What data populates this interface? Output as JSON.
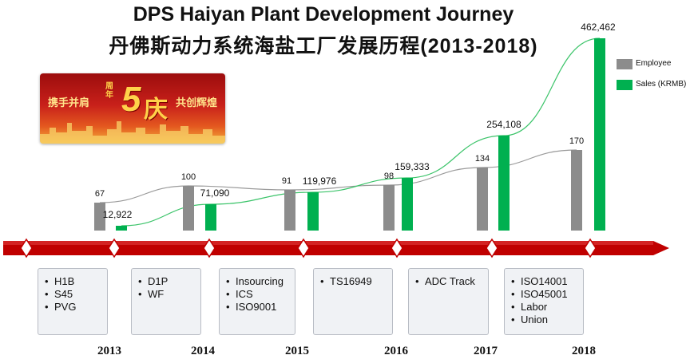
{
  "title_en": "DPS Haiyan Plant Development Journey",
  "title_cn": "丹佛斯动力系统海盐工厂发展历程(2013-2018)",
  "banner": {
    "left_text": "携手并肩",
    "number": "5",
    "small": "周年",
    "char": "庆",
    "right_text": "共创辉煌"
  },
  "colors": {
    "employee": "#8c8c8c",
    "sales": "#00b050",
    "timeline": "#c00000"
  },
  "chart_data": {
    "type": "bar",
    "categories": [
      "2013",
      "2014",
      "2015",
      "2016",
      "2017",
      "2018"
    ],
    "series": [
      {
        "name": "Employee",
        "values": [
          67,
          100,
          91,
          98,
          134,
          170
        ],
        "labels": [
          "67",
          "100",
          "91",
          "98",
          "134",
          "170"
        ]
      },
      {
        "name": "Sales (KRMB)",
        "values": [
          12922,
          71090,
          119976,
          159333,
          254108,
          462462
        ],
        "labels": [
          "12,922",
          "71,090",
          "119,976",
          "159,333",
          "254,108",
          "462,462"
        ]
      }
    ],
    "legend_position": "top-right"
  },
  "milestones": [
    {
      "year": "2013",
      "items": [
        "H1B",
        "S45",
        "PVG"
      ]
    },
    {
      "year": "2014",
      "items": [
        "D1P",
        "WF"
      ]
    },
    {
      "year": "2015",
      "items": [
        "Insourcing",
        "ICS",
        "ISO9001"
      ]
    },
    {
      "year": "2016",
      "items": [
        "TS16949"
      ]
    },
    {
      "year": "2017",
      "items": [
        "ADC Track"
      ]
    },
    {
      "year": "2018",
      "items": [
        "ISO14001",
        "ISO45001",
        "Labor",
        "Union"
      ]
    }
  ]
}
